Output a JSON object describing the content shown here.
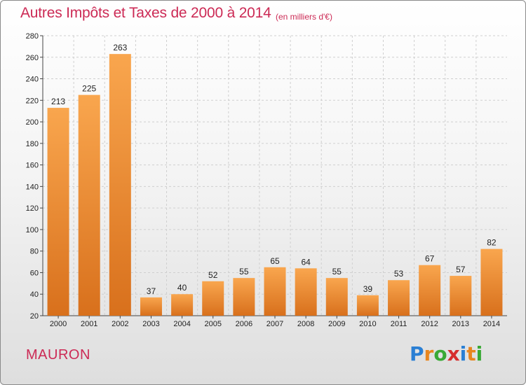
{
  "title": "Autres Impôts et Taxes de 2000 à 2014",
  "unit": "(en milliers d'€)",
  "city": "MAURON",
  "logo": {
    "letters": [
      "P",
      "r",
      "o",
      "x",
      "i",
      "t",
      "i"
    ],
    "colors": [
      "#2a7fd4",
      "#e8861e",
      "#39a935",
      "#d62e2e",
      "#2a7fd4",
      "#e8861e",
      "#39a935"
    ]
  },
  "colors": {
    "bar_top": "#f9a64e",
    "bar_bottom": "#d8701c",
    "title": "#cc2a55",
    "grid": "#cfcfcf"
  },
  "chart_data": {
    "type": "bar",
    "categories": [
      "2000",
      "2001",
      "2002",
      "2003",
      "2004",
      "2005",
      "2006",
      "2007",
      "2008",
      "2009",
      "2010",
      "2011",
      "2012",
      "2013",
      "2014"
    ],
    "values": [
      213,
      225,
      263,
      37,
      40,
      52,
      55,
      65,
      64,
      55,
      39,
      53,
      67,
      57,
      82
    ],
    "ylim": [
      20,
      280
    ],
    "yticks": [
      20,
      40,
      60,
      80,
      100,
      120,
      140,
      160,
      180,
      200,
      220,
      240,
      260,
      280
    ],
    "grid": true
  }
}
